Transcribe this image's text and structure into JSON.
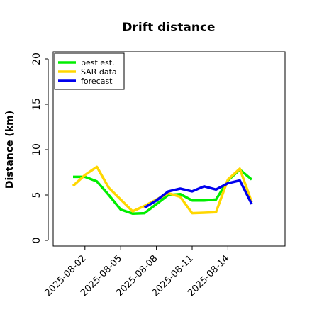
{
  "chart_data": {
    "type": "line",
    "title": "Drift distance",
    "xlabel": "",
    "ylabel": "Distance (km)",
    "ylim": [
      0,
      20
    ],
    "yticks": [
      0,
      5,
      10,
      15,
      20
    ],
    "x": [
      "2025-08-01",
      "2025-08-02",
      "2025-08-03",
      "2025-08-04",
      "2025-08-05",
      "2025-08-06",
      "2025-08-07",
      "2025-08-08",
      "2025-08-09",
      "2025-08-10",
      "2025-08-11",
      "2025-08-12",
      "2025-08-13",
      "2025-08-14",
      "2025-08-15",
      "2025-08-16"
    ],
    "xticks": [
      "2025-08-02",
      "2025-08-05",
      "2025-08-08",
      "2025-08-11",
      "2025-08-14"
    ],
    "legend_position": "top-left",
    "grid": false,
    "series": [
      {
        "name": "best est.",
        "color": "#00ee00",
        "values": [
          7.0,
          7.0,
          6.5,
          5.0,
          3.4,
          2.95,
          3.0,
          4.0,
          5.0,
          5.1,
          4.4,
          4.4,
          4.5,
          6.6,
          7.8,
          6.7
        ]
      },
      {
        "name": "SAR data",
        "color": "#ffd700",
        "values": [
          6.0,
          7.2,
          8.1,
          5.8,
          4.5,
          3.2,
          3.8,
          4.5,
          5.2,
          4.8,
          3.0,
          3.05,
          3.1,
          6.7,
          7.9,
          4.2
        ]
      },
      {
        "name": "forecast",
        "color": "#0000ee",
        "values": [
          null,
          null,
          null,
          null,
          null,
          null,
          3.6,
          4.4,
          5.4,
          5.7,
          5.4,
          5.95,
          5.6,
          6.3,
          6.6,
          4.0
        ]
      }
    ]
  }
}
